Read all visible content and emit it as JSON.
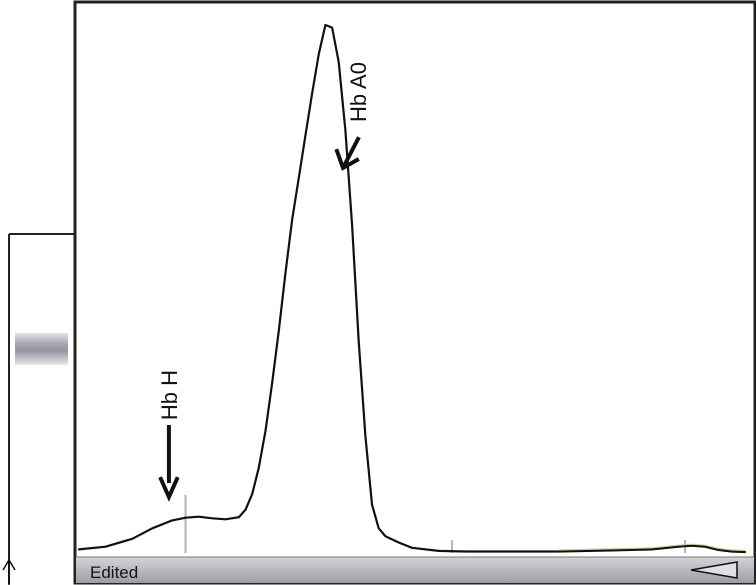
{
  "chart_data": {
    "type": "line",
    "title": "",
    "xlabel": "",
    "ylabel": "",
    "x": [
      0,
      4,
      8,
      11,
      14,
      16,
      18,
      20,
      22,
      24,
      25,
      26,
      27,
      28,
      29,
      30,
      31,
      32,
      33,
      34,
      35,
      36,
      37,
      38,
      39,
      40,
      41,
      42,
      43,
      44,
      45,
      46,
      48,
      50,
      54,
      58,
      64,
      72,
      80,
      86,
      90,
      92,
      94,
      96,
      98,
      100
    ],
    "series": [
      {
        "values": [
          0.5,
          1.0,
          2.5,
          4.5,
          6.0,
          6.5,
          6.7,
          6.4,
          6.2,
          6.6,
          8.0,
          11.0,
          16.0,
          23.0,
          32.0,
          42.0,
          53.0,
          63.0,
          71.0,
          79.0,
          87.0,
          94.5,
          100.0,
          99.5,
          93.0,
          80.0,
          62.0,
          40.0,
          22.0,
          9.0,
          4.5,
          3.0,
          1.8,
          0.8,
          0.2,
          0.1,
          0.1,
          0.1,
          0.3,
          0.5,
          1.0,
          1.2,
          1.0,
          0.4,
          0.1,
          0.0
        ]
      }
    ],
    "xlim": [
      0,
      100
    ],
    "ylim": [
      0,
      100
    ],
    "grid": false,
    "legend": "none",
    "tick_marks_x": [
      16,
      56,
      91
    ],
    "annotations": [
      {
        "label": "Hb H",
        "x": 12,
        "y": 7,
        "arrow_direction": "down"
      },
      {
        "label": "Hb A0",
        "x": 39,
        "y": 72,
        "arrow_direction": "down-left"
      }
    ],
    "colors": {
      "trace": "#111111",
      "trace_tail": "#b7c77a",
      "frame": "#222222",
      "status_bar": "#b7b8be",
      "band": "#9b97a3"
    }
  },
  "status": {
    "label": "Edited",
    "marker_icon": "triangle-left-icon"
  },
  "gel_strip": {
    "band_icon": "gel-band",
    "bottom_icon": "up-arrow-icon"
  }
}
